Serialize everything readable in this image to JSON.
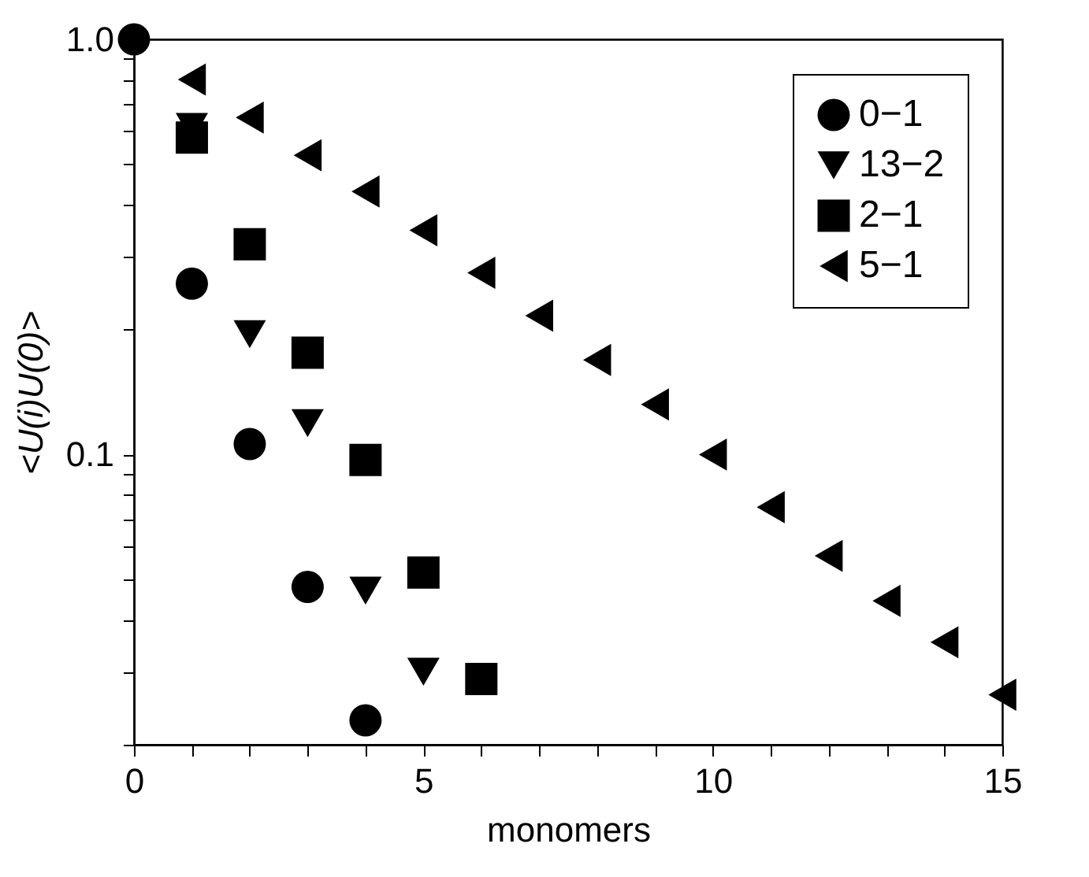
{
  "chart_data": {
    "type": "scatter",
    "xlabel": "monomers",
    "ylabel": "<U(i)U(0)>",
    "log": "y",
    "grid": false,
    "legend": "top right",
    "xlim": [
      0,
      15
    ],
    "xticks": [
      0,
      {
        "value": 1,
        "label": null
      },
      {
        "value": 2,
        "label": null
      },
      {
        "value": 3,
        "label": null
      },
      {
        "value": 4,
        "label": null
      },
      5,
      {
        "value": 6,
        "label": null
      },
      {
        "value": 7,
        "label": null
      },
      {
        "value": 8,
        "label": null
      },
      {
        "value": 9,
        "label": null
      },
      10,
      {
        "value": 11,
        "label": null
      },
      {
        "value": 12,
        "label": null
      },
      {
        "value": 13,
        "label": null
      },
      {
        "value": 14,
        "label": null
      },
      15
    ],
    "ylim": [
      0.02,
      1
    ],
    "yticks": [
      {
        "value": 0.02,
        "label": null
      },
      {
        "value": 0.03,
        "label": null
      },
      {
        "value": 0.04,
        "label": null
      },
      {
        "value": 0.05,
        "label": null
      },
      {
        "value": 0.06,
        "label": null
      },
      {
        "value": 0.07,
        "label": null
      },
      {
        "value": 0.08,
        "label": null
      },
      {
        "value": 0.09,
        "label": null
      },
      {
        "value": 0.1,
        "label": "0.1"
      },
      {
        "value": 0.2,
        "label": null
      },
      {
        "value": 0.3,
        "label": null
      },
      {
        "value": 0.4,
        "label": null
      },
      {
        "value": 0.5,
        "label": null
      },
      {
        "value": 0.6,
        "label": null
      },
      {
        "value": 0.7,
        "label": null
      },
      {
        "value": 0.8,
        "label": null
      },
      {
        "value": 0.9,
        "label": null
      },
      {
        "value": 1,
        "label": "1.0"
      }
    ],
    "series": [
      {
        "name": "0−1",
        "color": "#000000",
        "marker": "circle",
        "x": [
          0,
          1,
          2,
          3,
          4
        ],
        "values": [
          1.0,
          0.258,
          0.106,
          0.048,
          0.0229
        ]
      },
      {
        "name": "13−2",
        "color": "#000000",
        "marker": "triangle-down",
        "x": [
          1,
          2,
          3,
          4,
          5
        ],
        "values": [
          0.615,
          0.195,
          0.119,
          0.047,
          0.03
        ]
      },
      {
        "name": "2−1",
        "color": "#000000",
        "marker": "square",
        "x": [
          1,
          2,
          3,
          4,
          5,
          6
        ],
        "values": [
          0.58,
          0.321,
          0.176,
          0.097,
          0.052,
          0.0288
        ]
      },
      {
        "name": "5−1",
        "color": "#000000",
        "marker": "triangle-left",
        "x": [
          1,
          2,
          3,
          4,
          5,
          6,
          7,
          8,
          9,
          10,
          11,
          12,
          13,
          14,
          15
        ],
        "values": [
          0.8,
          0.648,
          0.526,
          0.43,
          0.347,
          0.274,
          0.216,
          0.169,
          0.132,
          0.1,
          0.0747,
          0.057,
          0.0444,
          0.0353,
          0.0264
        ]
      }
    ]
  }
}
